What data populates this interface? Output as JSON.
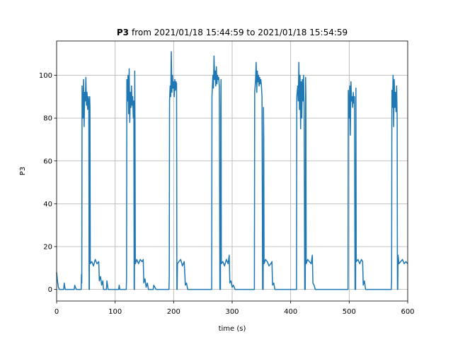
{
  "chart_data": {
    "type": "line",
    "title_bold": "P3",
    "title": "from 2021/01/18 15:44:59 to 2021/01/18 15:54:59",
    "x_label": "time (s)",
    "y_label": "P3",
    "color": "#1f77b4",
    "grid": true,
    "xlim": [
      0,
      600
    ],
    "ylim": [
      -5.4,
      116
    ],
    "xticks": [
      0,
      100,
      200,
      300,
      400,
      500,
      600
    ],
    "yticks": [
      0,
      20,
      40,
      60,
      80,
      100
    ],
    "x": [
      0,
      1,
      2,
      3,
      5,
      12,
      13,
      14,
      15,
      30,
      31,
      32,
      34,
      42,
      42.5,
      43,
      43.5,
      45,
      46,
      47,
      48,
      49,
      50,
      51,
      52,
      53,
      54,
      55,
      55.5,
      56,
      56.5,
      57,
      57.5,
      60,
      63,
      66,
      69,
      72,
      73,
      75,
      77,
      79,
      80,
      85,
      86,
      88,
      106,
      107,
      108,
      119,
      119.5,
      120,
      121,
      122,
      123,
      124,
      125,
      126,
      127,
      128,
      129,
      130,
      131,
      132,
      132.5,
      133,
      133.5,
      134,
      134.5,
      137,
      140,
      143,
      146,
      148,
      149,
      151,
      153,
      155,
      157,
      165,
      166,
      170,
      192,
      192.5,
      193,
      194,
      195,
      196,
      197,
      198,
      199,
      200,
      201,
      202,
      203,
      204,
      205,
      205.5,
      206,
      206.5,
      209,
      212,
      215,
      218,
      220,
      222,
      224,
      265,
      265.5,
      267,
      268,
      269,
      270,
      271,
      272,
      273,
      274,
      275,
      276,
      277,
      278,
      279,
      280,
      280.5,
      281,
      281.5,
      284,
      287,
      290,
      293,
      295,
      296,
      298,
      300,
      302,
      305,
      338,
      338.5,
      340,
      341,
      342,
      343,
      344,
      345,
      346,
      347,
      348,
      349,
      350,
      351,
      352,
      353,
      353.5,
      354,
      354.5,
      357,
      360,
      363,
      366,
      368,
      369,
      371,
      373,
      410,
      410.5,
      412,
      413,
      414,
      415,
      416,
      417,
      418,
      419,
      420,
      421,
      422,
      423,
      424,
      425,
      425.5,
      426,
      426.5,
      429,
      432,
      435,
      437,
      438,
      440,
      442,
      498,
      498.5,
      500,
      501,
      502,
      503,
      504,
      505,
      506,
      507,
      508,
      509,
      510,
      511,
      511.5,
      512,
      515,
      518,
      521,
      523,
      524,
      526,
      528,
      572,
      572.5,
      573,
      574,
      575,
      576,
      577,
      578,
      579,
      580,
      581,
      582,
      582.5,
      583,
      583.5,
      585,
      588,
      591,
      594,
      597,
      600
    ],
    "values": [
      8,
      5,
      3,
      1,
      0,
      0,
      3,
      1,
      0,
      0,
      2,
      1,
      0,
      0,
      7,
      3,
      95,
      80,
      98,
      76,
      92,
      88,
      99,
      86,
      92,
      84,
      90,
      88,
      0,
      0,
      90,
      85,
      12,
      13,
      11,
      14,
      12,
      13,
      4,
      6,
      2,
      4,
      0,
      0,
      4,
      0,
      0,
      2,
      0,
      0,
      5,
      98,
      88,
      100,
      82,
      103,
      78,
      92,
      85,
      95,
      86,
      90,
      80,
      88,
      0,
      0,
      102,
      75,
      12,
      14,
      12,
      14,
      13,
      14,
      3,
      5,
      1,
      3,
      0,
      0,
      2,
      0,
      0,
      6,
      88,
      95,
      90,
      111,
      92,
      100,
      94,
      97,
      90,
      98,
      93,
      97,
      96,
      0,
      0,
      12,
      13,
      14,
      11,
      13,
      2,
      3,
      0,
      0,
      90,
      100,
      94,
      109,
      98,
      102,
      95,
      104,
      96,
      100,
      98,
      99,
      95,
      0,
      0,
      85,
      98,
      12,
      13,
      11,
      14,
      12,
      16,
      3,
      4,
      1,
      2,
      0,
      0,
      92,
      98,
      106,
      92,
      102,
      97,
      100,
      95,
      99,
      96,
      98,
      95,
      90,
      0,
      0,
      85,
      70,
      12,
      14,
      13,
      11,
      12,
      13,
      2,
      3,
      0,
      0,
      90,
      95,
      88,
      106,
      84,
      100,
      75,
      97,
      80,
      98,
      88,
      100,
      85,
      0,
      0,
      99,
      90,
      12,
      14,
      13,
      12,
      16,
      3,
      2,
      0,
      0,
      93,
      80,
      95,
      72,
      97,
      88,
      90,
      85,
      92,
      87,
      90,
      0,
      0,
      94,
      13,
      14,
      12,
      14,
      13,
      2,
      4,
      0,
      0,
      5,
      93,
      85,
      100,
      76,
      98,
      85,
      92,
      83,
      95,
      80,
      0,
      0,
      16,
      12,
      13,
      14,
      12,
      13,
      12
    ]
  }
}
